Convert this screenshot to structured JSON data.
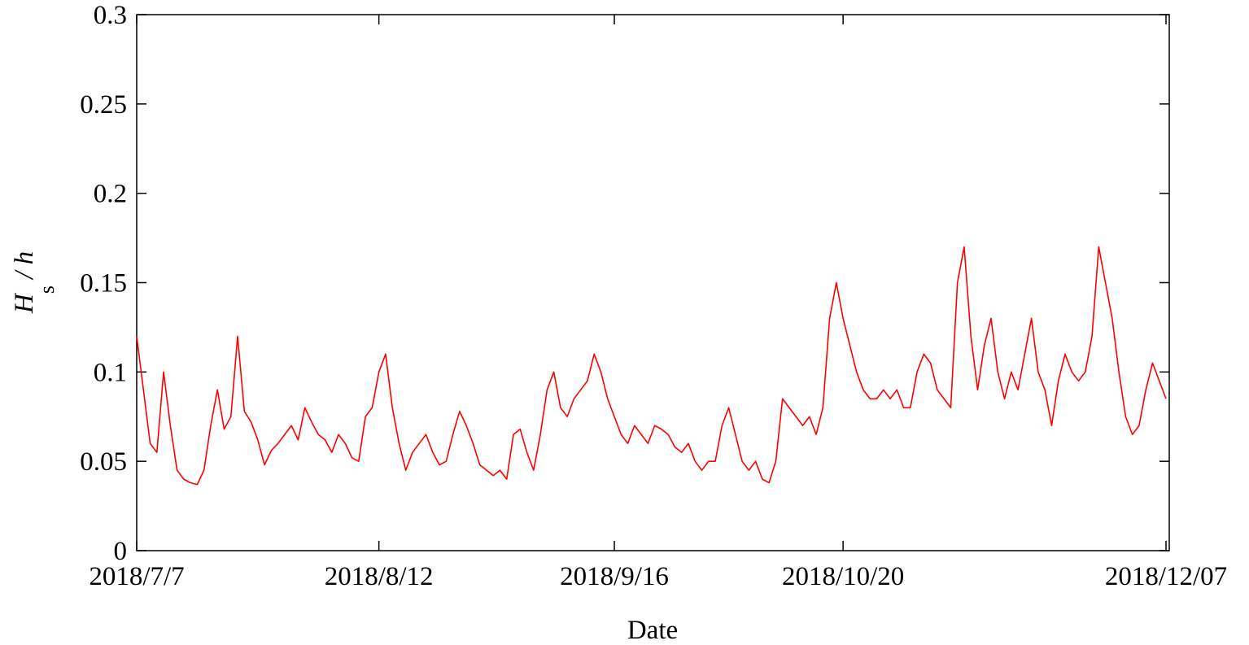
{
  "chart_data": {
    "type": "line",
    "xlabel": "Date",
    "ylabel": [
      "H",
      "s",
      " / h"
    ],
    "x": [
      "2018-07-07",
      "2018-07-08",
      "2018-07-09",
      "2018-07-10",
      "2018-07-11",
      "2018-07-12",
      "2018-07-13",
      "2018-07-14",
      "2018-07-15",
      "2018-07-16",
      "2018-07-17",
      "2018-07-18",
      "2018-07-19",
      "2018-07-20",
      "2018-07-21",
      "2018-07-22",
      "2018-07-23",
      "2018-07-24",
      "2018-07-25",
      "2018-07-26",
      "2018-07-27",
      "2018-07-28",
      "2018-07-29",
      "2018-07-30",
      "2018-07-31",
      "2018-08-01",
      "2018-08-02",
      "2018-08-03",
      "2018-08-04",
      "2018-08-05",
      "2018-08-06",
      "2018-08-07",
      "2018-08-08",
      "2018-08-09",
      "2018-08-10",
      "2018-08-11",
      "2018-08-12",
      "2018-08-13",
      "2018-08-14",
      "2018-08-15",
      "2018-08-16",
      "2018-08-17",
      "2018-08-18",
      "2018-08-19",
      "2018-08-20",
      "2018-08-21",
      "2018-08-22",
      "2018-08-23",
      "2018-08-24",
      "2018-08-25",
      "2018-08-26",
      "2018-08-27",
      "2018-08-28",
      "2018-08-29",
      "2018-08-30",
      "2018-08-31",
      "2018-09-01",
      "2018-09-02",
      "2018-09-03",
      "2018-09-04",
      "2018-09-05",
      "2018-09-06",
      "2018-09-07",
      "2018-09-08",
      "2018-09-09",
      "2018-09-10",
      "2018-09-11",
      "2018-09-12",
      "2018-09-13",
      "2018-09-14",
      "2018-09-15",
      "2018-09-16",
      "2018-09-17",
      "2018-09-18",
      "2018-09-19",
      "2018-09-20",
      "2018-09-21",
      "2018-09-22",
      "2018-09-23",
      "2018-09-24",
      "2018-09-25",
      "2018-09-26",
      "2018-09-27",
      "2018-09-28",
      "2018-09-29",
      "2018-09-30",
      "2018-10-01",
      "2018-10-02",
      "2018-10-03",
      "2018-10-04",
      "2018-10-05",
      "2018-10-06",
      "2018-10-07",
      "2018-10-08",
      "2018-10-09",
      "2018-10-10",
      "2018-10-11",
      "2018-10-12",
      "2018-10-13",
      "2018-10-14",
      "2018-10-15",
      "2018-10-16",
      "2018-10-17",
      "2018-10-18",
      "2018-10-19",
      "2018-10-20",
      "2018-10-21",
      "2018-10-22",
      "2018-10-23",
      "2018-10-24",
      "2018-10-25",
      "2018-10-26",
      "2018-10-27",
      "2018-10-28",
      "2018-10-29",
      "2018-10-30",
      "2018-10-31",
      "2018-11-01",
      "2018-11-02",
      "2018-11-03",
      "2018-11-04",
      "2018-11-05",
      "2018-11-06",
      "2018-11-07",
      "2018-11-08",
      "2018-11-09",
      "2018-11-10",
      "2018-11-11",
      "2018-11-12",
      "2018-11-13",
      "2018-11-14",
      "2018-11-15",
      "2018-11-16",
      "2018-11-17",
      "2018-11-18",
      "2018-11-19",
      "2018-11-20",
      "2018-11-21",
      "2018-11-22",
      "2018-11-23",
      "2018-11-24",
      "2018-11-25",
      "2018-11-26",
      "2018-11-27",
      "2018-11-28",
      "2018-11-29",
      "2018-11-30",
      "2018-12-01",
      "2018-12-02",
      "2018-12-03",
      "2018-12-04",
      "2018-12-05",
      "2018-12-06",
      "2018-12-07"
    ],
    "series": [
      {
        "color": "#ff0000",
        "values": [
          0.12,
          0.09,
          0.06,
          0.055,
          0.1,
          0.07,
          0.045,
          0.04,
          0.038,
          0.037,
          0.045,
          0.07,
          0.09,
          0.068,
          0.075,
          0.12,
          0.078,
          0.072,
          0.062,
          0.048,
          0.056,
          0.06,
          0.065,
          0.07,
          0.062,
          0.08,
          0.072,
          0.065,
          0.062,
          0.055,
          0.065,
          0.06,
          0.052,
          0.05,
          0.075,
          0.08,
          0.1,
          0.11,
          0.08,
          0.06,
          0.045,
          0.055,
          0.06,
          0.065,
          0.055,
          0.048,
          0.05,
          0.065,
          0.078,
          0.07,
          0.06,
          0.048,
          0.045,
          0.042,
          0.045,
          0.04,
          0.065,
          0.068,
          0.055,
          0.045,
          0.065,
          0.09,
          0.1,
          0.08,
          0.075,
          0.085,
          0.09,
          0.095,
          0.11,
          0.1,
          0.085,
          0.075,
          0.065,
          0.06,
          0.07,
          0.065,
          0.06,
          0.07,
          0.068,
          0.065,
          0.058,
          0.055,
          0.06,
          0.05,
          0.045,
          0.05,
          0.05,
          0.07,
          0.08,
          0.065,
          0.05,
          0.045,
          0.05,
          0.04,
          0.038,
          0.05,
          0.085,
          0.08,
          0.075,
          0.07,
          0.075,
          0.065,
          0.08,
          0.13,
          0.15,
          0.13,
          0.115,
          0.1,
          0.09,
          0.085,
          0.085,
          0.09,
          0.085,
          0.09,
          0.08,
          0.08,
          0.1,
          0.11,
          0.105,
          0.09,
          0.085,
          0.08,
          0.15,
          0.17,
          0.12,
          0.09,
          0.115,
          0.13,
          0.1,
          0.085,
          0.1,
          0.09,
          0.11,
          0.13,
          0.1,
          0.09,
          0.07,
          0.095,
          0.11,
          0.1,
          0.095,
          0.1,
          0.12,
          0.17,
          0.15,
          0.13,
          0.1,
          0.075,
          0.065,
          0.07,
          0.09,
          0.105,
          0.095,
          0.085
        ]
      }
    ],
    "xlim": [
      "2018-07-07",
      "2018-12-07"
    ],
    "xticks": [
      {
        "value": "2018-07-07",
        "label": "2018/7/7"
      },
      {
        "value": "2018-08-12",
        "label": "2018/8/12"
      },
      {
        "value": "2018-09-16",
        "label": "2018/9/16"
      },
      {
        "value": "2018-10-20",
        "label": "2018/10/20"
      },
      {
        "value": "2018-12-07",
        "label": "2018/12/07"
      }
    ],
    "ylim": [
      0,
      0.3
    ],
    "yticks": [
      0,
      0.05,
      0.1,
      0.15,
      0.2,
      0.25,
      0.3
    ],
    "grid": false
  }
}
